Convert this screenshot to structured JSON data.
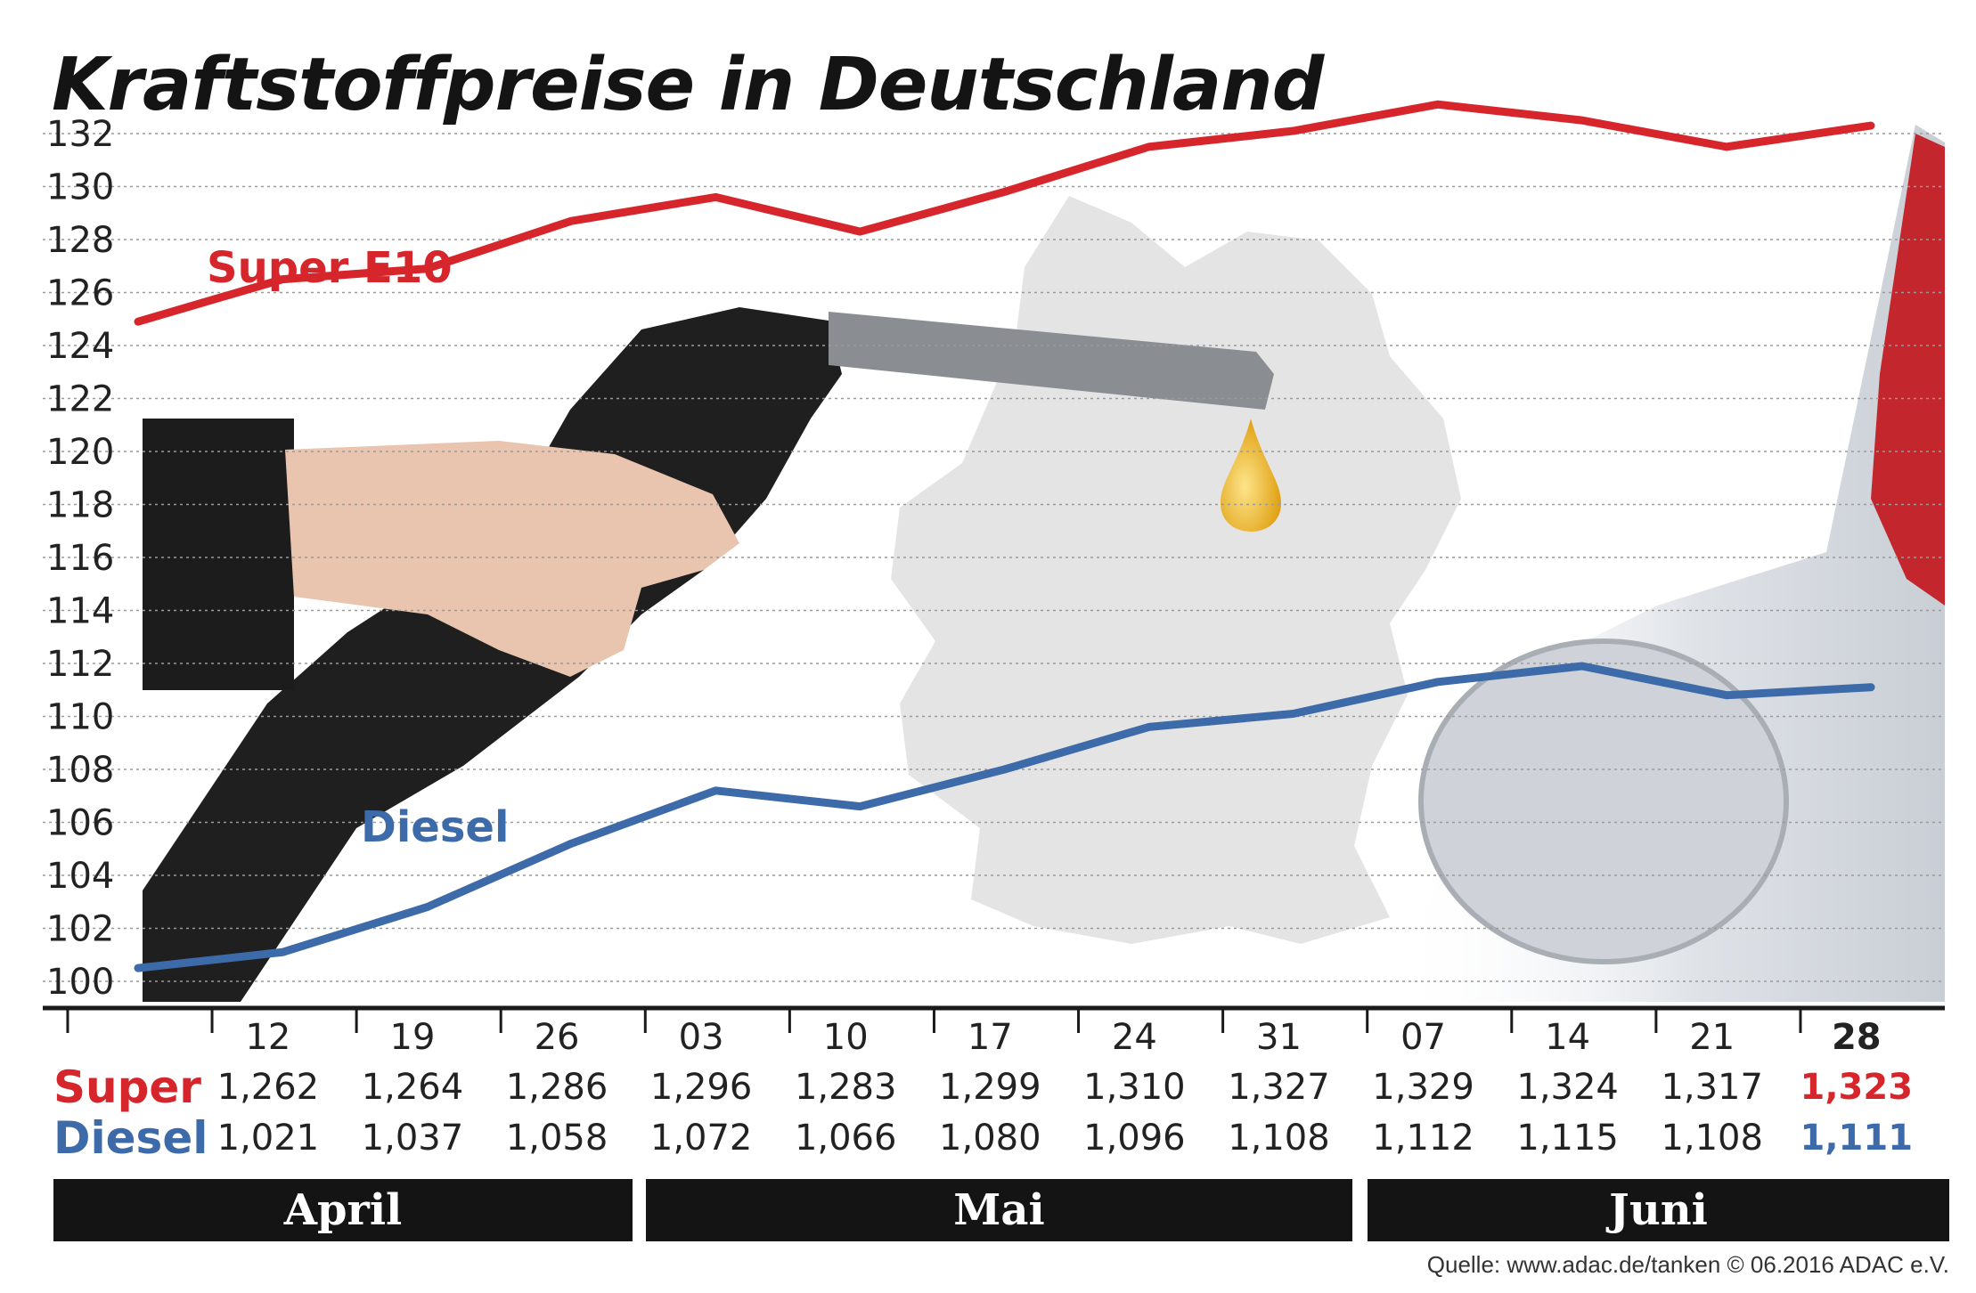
{
  "title": "Kraftstoffpreise in Deutschland",
  "source": "Quelle: www.adac.de/tanken   © 06.2016  ADAC e.V.",
  "colors": {
    "super": "#d7262b",
    "diesel": "#3d6aa8"
  },
  "chart_data": {
    "type": "line",
    "title": "Kraftstoffpreise in Deutschland",
    "ylim": [
      100,
      132
    ],
    "yticks": [
      100,
      102,
      104,
      106,
      108,
      110,
      112,
      114,
      116,
      118,
      120,
      122,
      124,
      126,
      128,
      130,
      132
    ],
    "grid": true,
    "x_labels": [
      "12",
      "19",
      "26",
      "03",
      "10",
      "17",
      "24",
      "31",
      "07",
      "14",
      "21",
      "28"
    ],
    "months": [
      {
        "label": "April"
      },
      {
        "label": "Mai"
      },
      {
        "label": "Juni"
      }
    ],
    "series": [
      {
        "name": "Super E10",
        "row_label": "Super",
        "color": "#d7262b",
        "values": [
          124.9,
          126.5,
          126.9,
          128.7,
          129.6,
          128.3,
          129.8,
          131.5,
          132.1,
          133.1,
          132.5,
          131.5,
          132.3
        ],
        "table_values": [
          "1,262",
          "1,264",
          "1,286",
          "1,296",
          "1,283",
          "1,299",
          "1,310",
          "1,327",
          "1,329",
          "1,324",
          "1,317",
          "1,323"
        ]
      },
      {
        "name": "Diesel",
        "row_label": "Diesel",
        "color": "#3d6aa8",
        "values": [
          100.5,
          101.1,
          102.8,
          105.2,
          107.2,
          106.6,
          108.0,
          109.6,
          110.1,
          111.3,
          111.9,
          110.8,
          111.1
        ],
        "table_values": [
          "1,021",
          "1,037",
          "1,058",
          "1,072",
          "1,066",
          "1,080",
          "1,096",
          "1,108",
          "1,112",
          "1,115",
          "1,108",
          "1,111"
        ]
      }
    ]
  }
}
